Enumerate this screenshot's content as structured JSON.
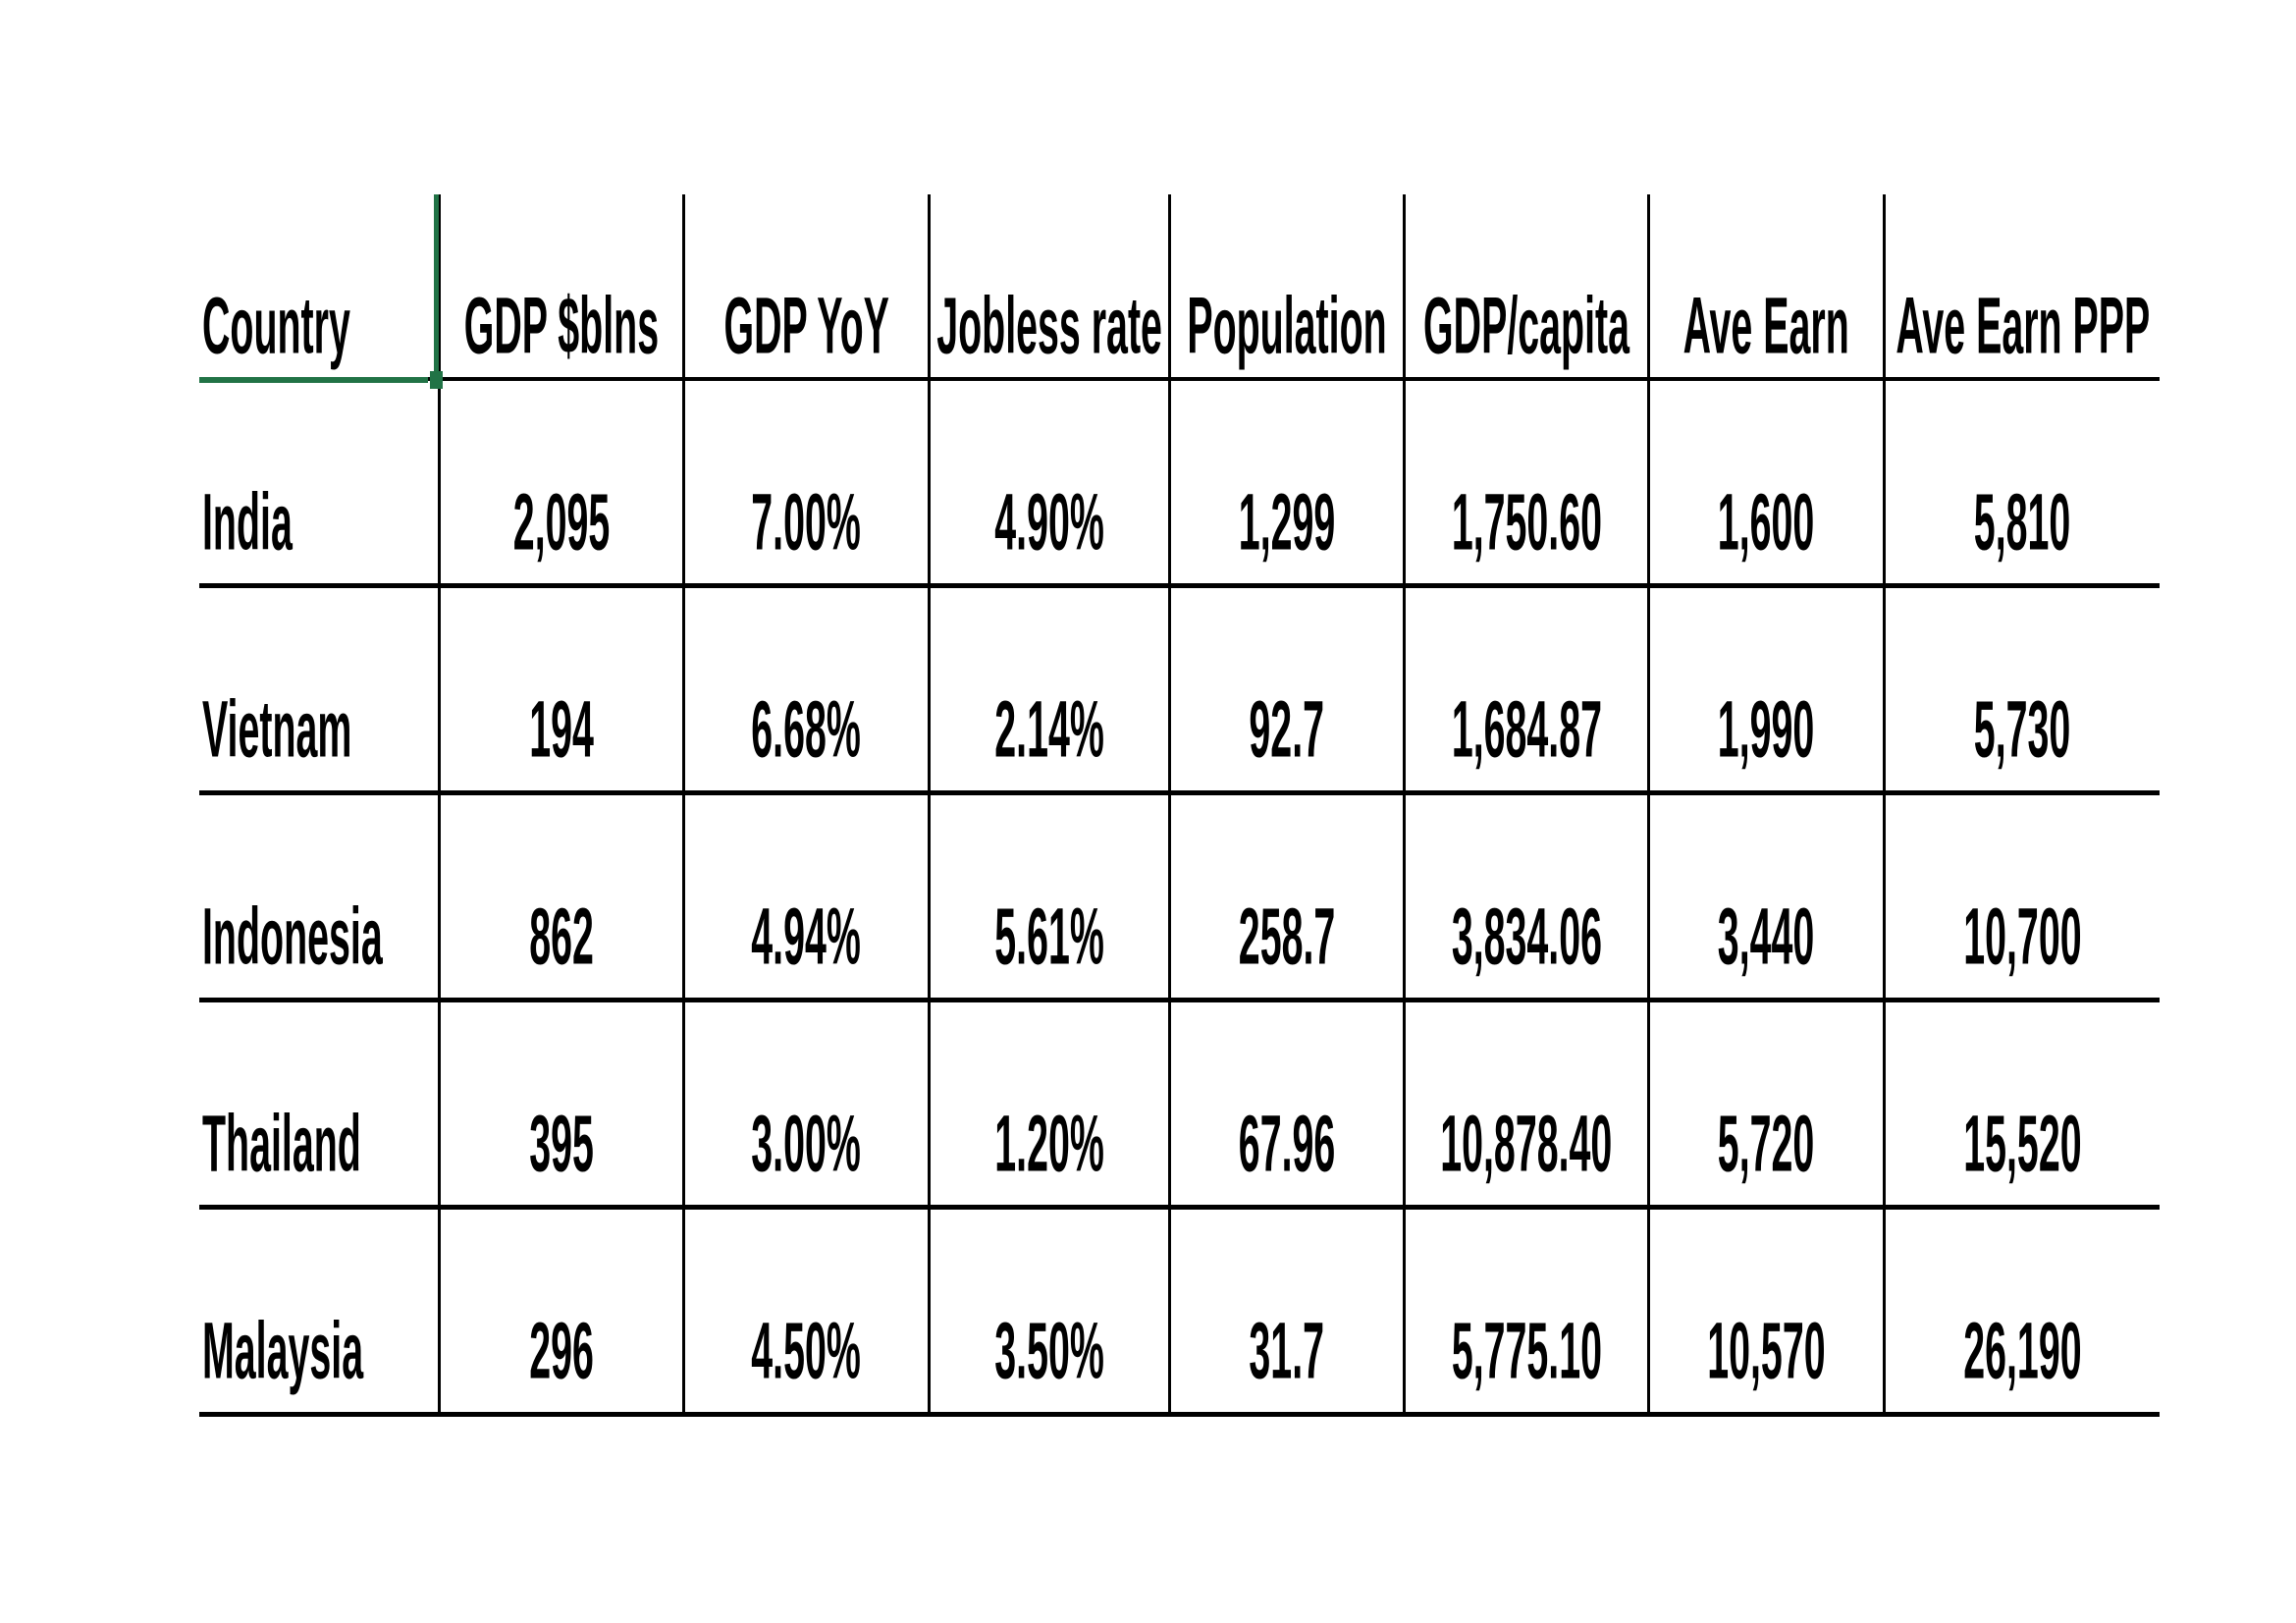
{
  "selection": {
    "selected_cell": "Country"
  },
  "colors": {
    "selection_green": "#217346",
    "gridline": "#000000",
    "text": "#000000",
    "background": "#ffffff"
  },
  "table": {
    "columns": [
      "Country",
      "GDP $blns",
      "GDP YoY",
      "Jobless rate",
      "Population",
      "GDP/capita",
      "Ave Earn",
      "Ave Earn PPP"
    ],
    "rows": [
      {
        "cells": [
          "India",
          "2,095",
          "7.00%",
          "4.90%",
          "1,299",
          "1,750.60",
          "1,600",
          "5,810"
        ]
      },
      {
        "cells": [
          "Vietnam",
          "194",
          "6.68%",
          "2.14%",
          "92.7",
          "1,684.87",
          "1,990",
          "5,730"
        ]
      },
      {
        "cells": [
          "Indonesia",
          "862",
          "4.94%",
          "5.61%",
          "258.7",
          "3,834.06",
          "3,440",
          "10,700"
        ]
      },
      {
        "cells": [
          "Thailand",
          "395",
          "3.00%",
          "1.20%",
          "67.96",
          "10,878.40",
          "5,720",
          "15,520"
        ]
      },
      {
        "cells": [
          "Malaysia",
          "296",
          "4.50%",
          "3.50%",
          "31.7",
          "5,775.10",
          "10,570",
          "26,190"
        ]
      }
    ]
  }
}
